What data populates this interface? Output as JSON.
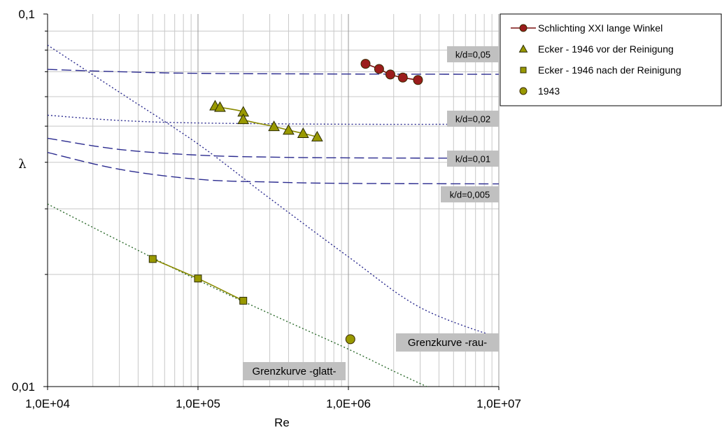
{
  "chart_data": {
    "type": "scatter",
    "xscale": "log",
    "yscale": "log",
    "xlabel": "Re",
    "ylabel": "λ",
    "xlim": [
      10000,
      10000000
    ],
    "ylim": [
      0.01,
      0.1
    ],
    "grid": true,
    "legend_position": "right",
    "x_tick_labels": [
      {
        "value": 10000,
        "label": "1,0E+04"
      },
      {
        "value": 100000,
        "label": "1,0E+05"
      },
      {
        "value": 1000000,
        "label": "1,0E+06"
      },
      {
        "value": 10000000,
        "label": "1,0E+07"
      }
    ],
    "y_tick_labels": [
      {
        "value": 0.01,
        "label": "0,01"
      },
      {
        "value": 0.1,
        "label": "0,1"
      }
    ],
    "series": [
      {
        "name": "Schlichting XXI lange Winkel",
        "marker": "circle",
        "color": "#9b1c1c",
        "connected": true,
        "points": [
          [
            1300000,
            0.0735
          ],
          [
            1600000,
            0.0712
          ],
          [
            1900000,
            0.0688
          ],
          [
            2300000,
            0.0675
          ],
          [
            2900000,
            0.0665
          ]
        ]
      },
      {
        "name": "Ecker - 1946 vor der Reinigung",
        "marker": "triangle",
        "color": "#999900",
        "connected": true,
        "points": [
          [
            130000,
            0.0567
          ],
          [
            140000,
            0.0562
          ],
          [
            200000,
            0.0546
          ],
          [
            200000,
            0.0521
          ],
          [
            320000,
            0.0499
          ],
          [
            400000,
            0.0488
          ],
          [
            500000,
            0.0478
          ],
          [
            620000,
            0.0468
          ]
        ]
      },
      {
        "name": "Ecker - 1946 nach der Reinigung",
        "marker": "square",
        "color": "#999900",
        "connected": true,
        "points": [
          [
            50000,
            0.022
          ],
          [
            100000,
            0.0195
          ],
          [
            200000,
            0.017
          ]
        ]
      },
      {
        "name": "1943",
        "marker": "circle",
        "color": "#999900",
        "connected": false,
        "points": [
          [
            1030000,
            0.0134
          ]
        ]
      }
    ],
    "reference_curves": [
      {
        "label": "k/d=0,05",
        "style": "dashed",
        "color": "#2b2b8f",
        "points": [
          [
            10000,
            0.071
          ],
          [
            30000,
            0.07
          ],
          [
            100000,
            0.0693
          ],
          [
            1000000,
            0.069
          ],
          [
            10000000,
            0.0689
          ]
        ]
      },
      {
        "label": "k/d=0,02",
        "style": "dotted",
        "color": "#2b2b8f",
        "points": [
          [
            10000,
            0.0535
          ],
          [
            30000,
            0.0518
          ],
          [
            100000,
            0.051
          ],
          [
            1000000,
            0.0506
          ],
          [
            10000000,
            0.0506
          ]
        ]
      },
      {
        "label": "k/d=0,01",
        "style": "dashed",
        "color": "#2b2b8f",
        "points": [
          [
            10000,
            0.0464
          ],
          [
            30000,
            0.0433
          ],
          [
            100000,
            0.0418
          ],
          [
            300000,
            0.0413
          ],
          [
            1000000,
            0.0411
          ],
          [
            10000000,
            0.041
          ]
        ]
      },
      {
        "label": "k/d=0,005",
        "style": "dashed",
        "color": "#2b2b8f",
        "points": [
          [
            10000,
            0.0425
          ],
          [
            30000,
            0.0383
          ],
          [
            100000,
            0.036
          ],
          [
            300000,
            0.0354
          ],
          [
            1000000,
            0.0351
          ],
          [
            10000000,
            0.035
          ]
        ]
      },
      {
        "label": "Grenzkurve -rau-",
        "style": "dotted",
        "color": "#2b2b8f",
        "points": [
          [
            10000,
            0.0825
          ],
          [
            30000,
            0.0617
          ],
          [
            100000,
            0.0448
          ],
          [
            300000,
            0.032
          ],
          [
            1000000,
            0.0223
          ],
          [
            3000000,
            0.0163
          ],
          [
            10000000,
            0.0135
          ]
        ]
      },
      {
        "label": "Grenzkurve -glatt-",
        "style": "dotted",
        "color": "#2d6b2d",
        "points": [
          [
            10000,
            0.0309
          ],
          [
            30000,
            0.0246
          ],
          [
            100000,
            0.0193
          ],
          [
            300000,
            0.0157
          ],
          [
            1000000,
            0.0126
          ],
          [
            2000000,
            0.011
          ],
          [
            3500000,
            0.0099
          ]
        ]
      }
    ]
  }
}
